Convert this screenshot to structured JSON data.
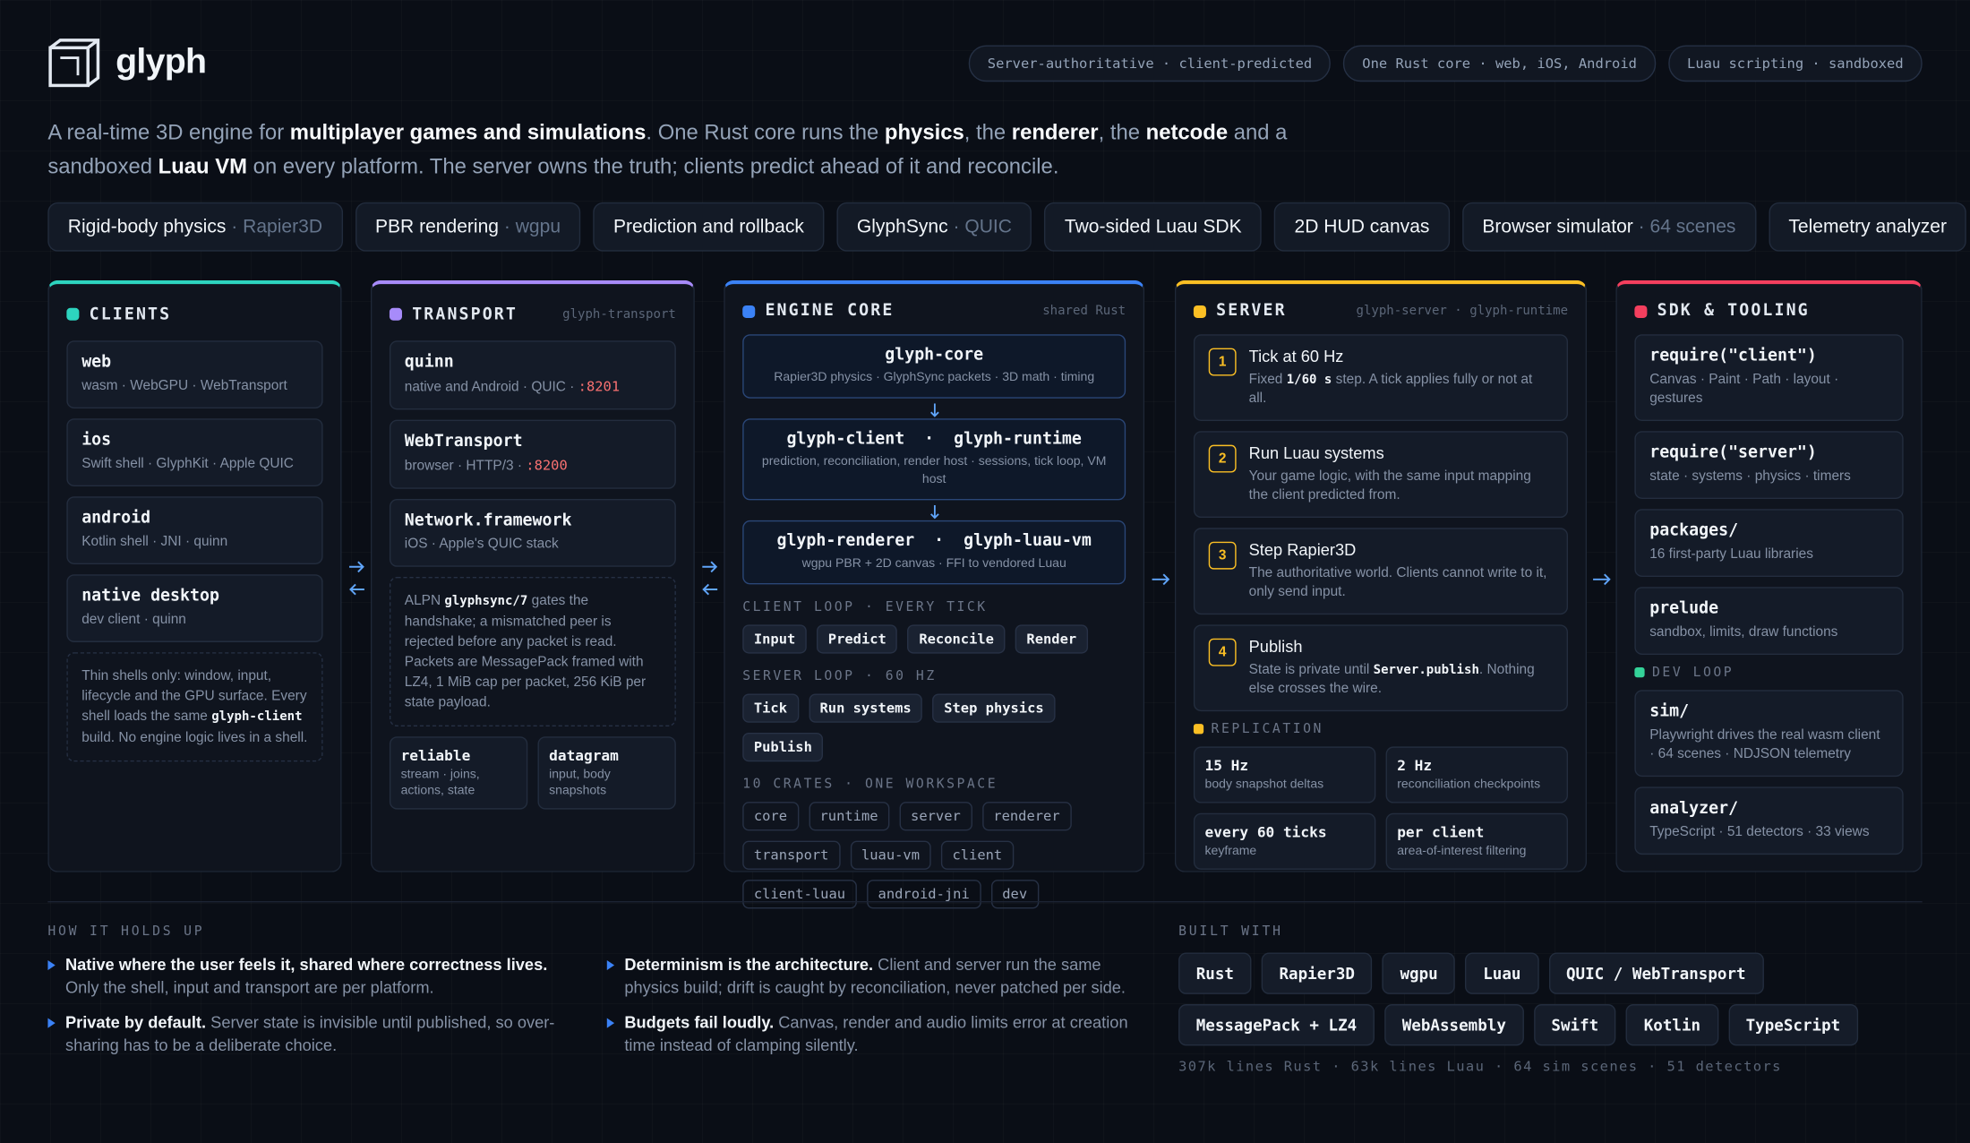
{
  "header": {
    "logo": "glyph",
    "badges": [
      "Server-authoritative · client-predicted",
      "One Rust core · web, iOS, Android",
      "Luau scripting · sandboxed"
    ]
  },
  "intro": [
    "A real-time 3D engine for ",
    {
      "strong": "multiplayer games and simulations"
    },
    ". One Rust core runs the ",
    {
      "strong": "physics"
    },
    ", the ",
    {
      "strong": "renderer"
    },
    ", the ",
    {
      "strong": "netcode"
    },
    " and a sandboxed ",
    {
      "strong": "Luau VM"
    },
    " on every platform. The server owns the truth; clients predict ahead of it and reconcile."
  ],
  "features": [
    {
      "name": "Rigid-body physics",
      "detail": "Rapier3D"
    },
    {
      "name": "PBR rendering",
      "detail": "wgpu"
    },
    {
      "name": "Prediction and rollback"
    },
    {
      "name": "GlyphSync",
      "detail": "QUIC"
    },
    {
      "name": "Two-sided Luau SDK"
    },
    {
      "name": "2D HUD canvas"
    },
    {
      "name": "Browser simulator",
      "detail": "64 scenes"
    },
    {
      "name": "Telemetry analyzer"
    }
  ],
  "clients": {
    "title": "CLIENTS",
    "color": "#2dd4bf",
    "items": [
      {
        "name": "web",
        "desc": "wasm · WebGPU · WebTransport"
      },
      {
        "name": "ios",
        "desc": "Swift shell · GlyphKit · Apple QUIC"
      },
      {
        "name": "android",
        "desc": "Kotlin shell · JNI · quinn"
      },
      {
        "name": "native desktop",
        "desc": "dev client · quinn"
      }
    ],
    "note": [
      "Thin shells only: window, input, lifecycle and the GPU surface. Every shell loads the same ",
      {
        "code": "glyph-client"
      },
      " build. No engine logic lives in a shell."
    ]
  },
  "transport": {
    "title": "TRANSPORT",
    "tag": "glyph-transport",
    "color": "#a78bfa",
    "items": [
      {
        "name": "quinn",
        "desc": [
          "native and Android · QUIC · ",
          {
            "port": ":8201"
          }
        ]
      },
      {
        "name": "WebTransport",
        "desc": [
          "browser · HTTP/3 · ",
          {
            "port": ":8200"
          }
        ]
      },
      {
        "name": "Network.framework",
        "desc": "iOS · Apple's QUIC stack"
      }
    ],
    "note": [
      "ALPN ",
      {
        "code": "glyphsync/7"
      },
      " gates the handshake; a mismatched peer is rejected before any packet is read. Packets are MessagePack framed with LZ4, 1 MiB cap per packet, 256 KiB per state payload."
    ],
    "channels": [
      {
        "name": "reliable",
        "desc": "stream · joins, actions, state"
      },
      {
        "name": "datagram",
        "desc": "input, body snapshots"
      }
    ]
  },
  "core": {
    "title": "ENGINE CORE",
    "tag": "shared Rust",
    "color": "#3b82f6",
    "crates": [
      {
        "name": "glyph-core",
        "desc": "Rapier3D physics · GlyphSync packets · 3D math · timing"
      },
      {
        "name": "glyph-client  ·  glyph-runtime",
        "desc": "prediction, reconciliation, render host · sessions, tick loop, VM host"
      },
      {
        "name": "glyph-renderer  ·  glyph-luau-vm",
        "desc": "wgpu PBR + 2D canvas · FFI to vendored Luau"
      }
    ],
    "client_loop": {
      "label": "CLIENT LOOP · EVERY TICK",
      "steps": [
        "Input",
        "Predict",
        "Reconcile",
        "Render"
      ]
    },
    "server_loop": {
      "label": "SERVER LOOP · 60 HZ",
      "steps": [
        "Tick",
        "Run systems",
        "Step physics",
        "Publish"
      ]
    },
    "workspace": {
      "label": "10 CRATES · ONE WORKSPACE",
      "crates": [
        "core",
        "runtime",
        "server",
        "renderer",
        "transport",
        "luau-vm",
        "client",
        "client-luau",
        "android-jni",
        "dev"
      ]
    }
  },
  "server": {
    "title": "SERVER",
    "tag": "glyph-server · glyph-runtime",
    "color": "#fbbf24",
    "steps": [
      {
        "n": 1,
        "name": "Tick at 60 Hz",
        "desc": [
          "Fixed ",
          {
            "code": "1/60 s"
          },
          " step. A tick applies fully or not at all."
        ]
      },
      {
        "n": 2,
        "name": "Run Luau systems",
        "desc": "Your game logic, with the same input mapping the client predicted from."
      },
      {
        "n": 3,
        "name": "Step Rapier3D",
        "desc": "The authoritative world. Clients cannot write to it, only send input."
      },
      {
        "n": 4,
        "name": "Publish",
        "desc": [
          "State is private until ",
          {
            "code": "Server.publish"
          },
          ". Nothing else crosses the wire."
        ]
      }
    ],
    "replication": {
      "label": "REPLICATION",
      "items": [
        {
          "name": "15 Hz",
          "desc": "body snapshot deltas"
        },
        {
          "name": "2 Hz",
          "desc": "reconciliation checkpoints"
        },
        {
          "name": "every 60 ticks",
          "desc": "keyframe"
        },
        {
          "name": "per client",
          "desc": "area-of-interest filtering"
        }
      ]
    }
  },
  "sdk": {
    "title": "SDK & TOOLING",
    "color": "#f43f5e",
    "items": [
      {
        "name": "require(\"client\")",
        "desc": "Canvas · Paint · Path · layout · gestures"
      },
      {
        "name": "require(\"server\")",
        "desc": "state · systems · physics · timers"
      },
      {
        "name": "packages/",
        "desc": "16 first-party Luau libraries"
      },
      {
        "name": "prelude",
        "desc": "sandbox, limits, draw functions"
      }
    ],
    "dev_loop": {
      "label": "DEV LOOP",
      "color": "#34d399",
      "items": [
        {
          "name": "sim/",
          "desc": "Playwright drives the real wasm client · 64 scenes · NDJSON telemetry"
        },
        {
          "name": "analyzer/",
          "desc": "TypeScript · 51 detectors · 33 views"
        }
      ]
    }
  },
  "footer": {
    "holds_up": {
      "label": "HOW IT HOLDS UP",
      "points": [
        [
          {
            "strong": "Native where the user feels it, shared where correctness lives."
          },
          " Only the shell, input and transport are per platform."
        ],
        [
          {
            "strong": "Private by default."
          },
          " Server state is invisible until published, so over-sharing has to be a deliberate choice."
        ],
        [
          {
            "strong": "Determinism is the architecture."
          },
          " Client and server run the same physics build; drift is caught by reconciliation, never patched per side."
        ],
        [
          {
            "strong": "Budgets fail loudly."
          },
          " Canvas, render and audio limits error at creation time instead of clamping silently."
        ]
      ]
    },
    "built_with": {
      "label": "BUILT WITH",
      "items": [
        "Rust",
        "Rapier3D",
        "wgpu",
        "Luau",
        "QUIC / WebTransport",
        "MessagePack + LZ4",
        "WebAssembly",
        "Swift",
        "Kotlin",
        "TypeScript"
      ],
      "stats": "307k lines Rust · 63k lines Luau · 64 sim scenes · 51 detectors"
    }
  }
}
